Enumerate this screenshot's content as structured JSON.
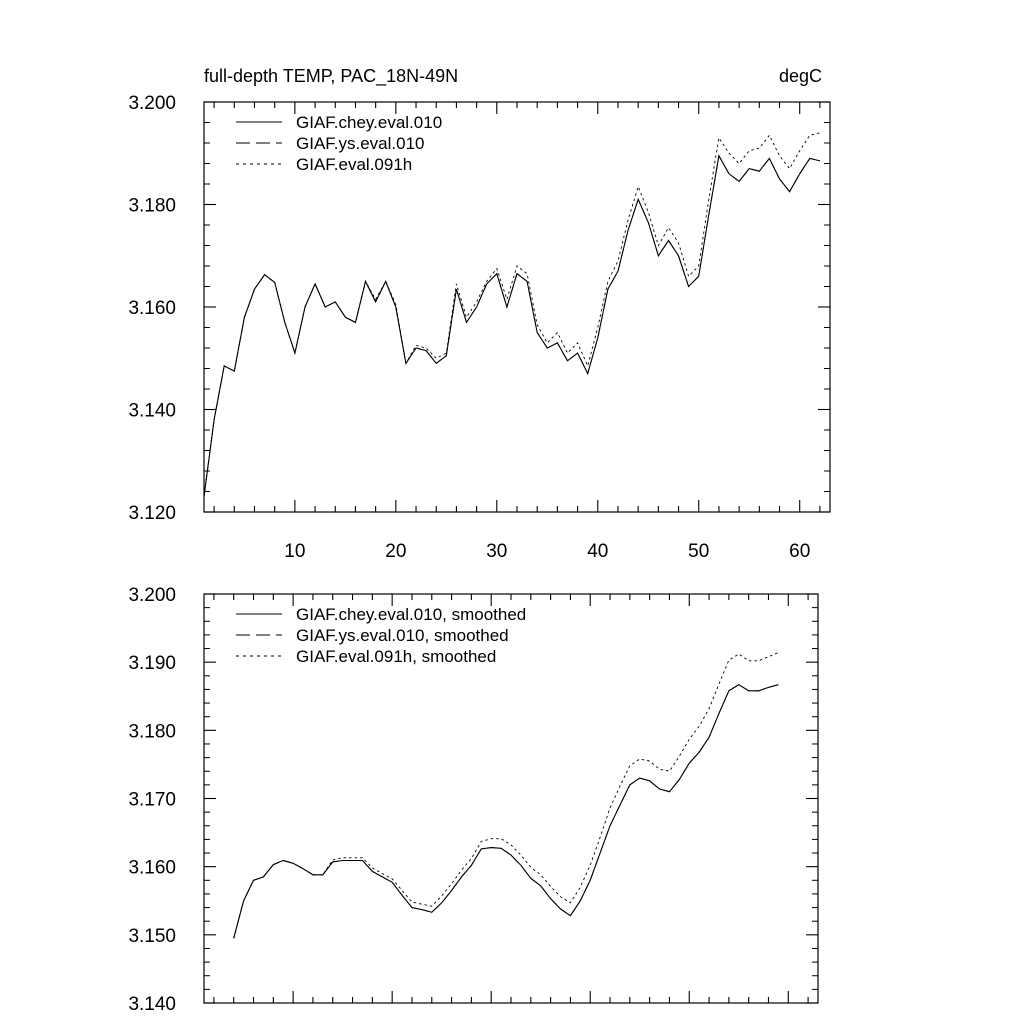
{
  "chart_data": [
    {
      "type": "line",
      "title": "full-depth TEMP, PAC_18N-49N",
      "units": "degC",
      "xlim": [
        1,
        63
      ],
      "ylim": [
        3.12,
        3.2
      ],
      "xticks": [
        10,
        20,
        30,
        40,
        50,
        60
      ],
      "xtick_labels": [
        "10",
        "20",
        "30",
        "40",
        "50",
        "60"
      ],
      "yticks": [
        3.12,
        3.14,
        3.16,
        3.18,
        3.2
      ],
      "ytick_labels": [
        "3.120",
        "3.140",
        "3.160",
        "3.180",
        "3.200"
      ],
      "legend_position": "top-left",
      "x": [
        1,
        2,
        3,
        4,
        5,
        6,
        7,
        8,
        9,
        10,
        11,
        12,
        13,
        14,
        15,
        16,
        17,
        18,
        19,
        20,
        21,
        22,
        23,
        24,
        25,
        26,
        27,
        28,
        29,
        30,
        31,
        32,
        33,
        34,
        35,
        36,
        37,
        38,
        39,
        40,
        41,
        42,
        43,
        44,
        45,
        46,
        47,
        48,
        49,
        50,
        51,
        52,
        53,
        54,
        55,
        56,
        57,
        58,
        59,
        60,
        61,
        62
      ],
      "series": [
        {
          "name": "GIAF.chey.eval.010",
          "style": "solid",
          "values": [
            3.123,
            3.138,
            3.1485,
            3.1475,
            3.158,
            3.1635,
            3.1663,
            3.1648,
            3.157,
            3.151,
            3.16,
            3.1645,
            3.16,
            3.161,
            3.158,
            3.157,
            3.165,
            3.161,
            3.165,
            3.16,
            3.149,
            3.152,
            3.1515,
            3.149,
            3.1505,
            3.1635,
            3.157,
            3.16,
            3.1645,
            3.1665,
            3.16,
            3.1665,
            3.165,
            3.155,
            3.152,
            3.153,
            3.1495,
            3.151,
            3.147,
            3.154,
            3.1635,
            3.167,
            3.175,
            3.181,
            3.1765,
            3.17,
            3.173,
            3.17,
            3.164,
            3.166,
            3.178,
            3.1895,
            3.186,
            3.1845,
            3.187,
            3.1865,
            3.189,
            3.185,
            3.1825,
            3.186,
            3.189,
            3.1885
          ]
        },
        {
          "name": "GIAF.ys.eval.010",
          "style": "dashed",
          "values": [
            3.123,
            3.138,
            3.1485,
            3.1475,
            3.158,
            3.1635,
            3.1663,
            3.1648,
            3.157,
            3.151,
            3.16,
            3.1645,
            3.16,
            3.161,
            3.158,
            3.157,
            3.165,
            3.161,
            3.165,
            3.16,
            3.149,
            3.152,
            3.1515,
            3.149,
            3.1505,
            3.1635,
            3.157,
            3.16,
            3.1645,
            3.1665,
            3.16,
            3.1665,
            3.165,
            3.155,
            3.152,
            3.153,
            3.1495,
            3.151,
            3.147,
            3.154,
            3.1635,
            3.167,
            3.175,
            3.181,
            3.1765,
            3.17,
            3.173,
            3.17,
            3.164,
            3.166,
            3.178,
            3.1895,
            3.186,
            3.1845,
            3.187,
            3.1865,
            3.189,
            3.185,
            3.1825,
            3.186,
            3.189,
            3.1885
          ]
        },
        {
          "name": "GIAF.eval.091h",
          "style": "dotted",
          "values": [
            3.123,
            3.138,
            3.1485,
            3.1475,
            3.158,
            3.1635,
            3.1663,
            3.1648,
            3.157,
            3.151,
            3.16,
            3.1645,
            3.16,
            3.161,
            3.158,
            3.157,
            3.165,
            3.1615,
            3.165,
            3.1605,
            3.149,
            3.1525,
            3.152,
            3.15,
            3.151,
            3.1645,
            3.158,
            3.161,
            3.165,
            3.1675,
            3.1615,
            3.168,
            3.1665,
            3.1565,
            3.153,
            3.155,
            3.151,
            3.153,
            3.1485,
            3.156,
            3.165,
            3.169,
            3.177,
            3.1835,
            3.1785,
            3.172,
            3.1755,
            3.1725,
            3.166,
            3.168,
            3.181,
            3.193,
            3.19,
            3.188,
            3.1905,
            3.191,
            3.1935,
            3.1895,
            3.187,
            3.1905,
            3.1935,
            3.194
          ]
        }
      ]
    },
    {
      "type": "line",
      "xlim": [
        1,
        63
      ],
      "ylim": [
        3.14,
        3.2
      ],
      "xticks": [
        10,
        20,
        30,
        40,
        50,
        60
      ],
      "yticks": [
        3.14,
        3.15,
        3.16,
        3.17,
        3.18,
        3.19,
        3.2
      ],
      "ytick_labels": [
        "3.140",
        "3.150",
        "3.160",
        "3.170",
        "3.180",
        "3.190",
        "3.200"
      ],
      "legend_position": "top-left",
      "x": [
        4,
        5,
        6,
        7,
        8,
        9,
        10,
        11,
        12,
        13,
        14,
        15,
        16,
        17,
        18,
        19,
        20,
        21,
        22,
        23,
        24,
        25,
        26,
        27,
        28,
        29,
        30,
        31,
        32,
        33,
        34,
        35,
        36,
        37,
        38,
        39,
        40,
        41,
        42,
        43,
        44,
        45,
        46,
        47,
        48,
        49,
        50,
        51,
        52,
        53,
        54,
        55,
        56,
        57,
        58,
        59
      ],
      "series": [
        {
          "name": "GIAF.chey.eval.010, smoothed",
          "style": "solid",
          "values": [
            3.1495,
            3.155,
            3.158,
            3.1585,
            3.1603,
            3.1609,
            3.1605,
            3.1597,
            3.1588,
            3.1588,
            3.1607,
            3.1609,
            3.1609,
            3.1609,
            3.1593,
            3.1585,
            3.1577,
            3.1558,
            3.154,
            3.1537,
            3.1533,
            3.1547,
            3.1565,
            3.1585,
            3.1602,
            3.1626,
            3.1628,
            3.1627,
            3.1617,
            3.1602,
            3.1583,
            3.1572,
            3.1553,
            3.1538,
            3.1528,
            3.155,
            3.158,
            3.162,
            3.166,
            3.169,
            3.172,
            3.173,
            3.1726,
            3.1714,
            3.171,
            3.1728,
            3.1752,
            3.1768,
            3.179,
            3.1825,
            3.1858,
            3.1867,
            3.1858,
            3.1858,
            3.1863,
            3.1867
          ]
        },
        {
          "name": "GIAF.ys.eval.010, smoothed",
          "style": "dashed",
          "values": [
            3.1495,
            3.155,
            3.158,
            3.1585,
            3.1603,
            3.1609,
            3.1605,
            3.1597,
            3.1588,
            3.1588,
            3.1607,
            3.1609,
            3.1609,
            3.1609,
            3.1593,
            3.1585,
            3.1577,
            3.1558,
            3.154,
            3.1537,
            3.1533,
            3.1547,
            3.1565,
            3.1585,
            3.1602,
            3.1626,
            3.1628,
            3.1627,
            3.1617,
            3.1602,
            3.1583,
            3.1572,
            3.1553,
            3.1538,
            3.1528,
            3.155,
            3.158,
            3.162,
            3.166,
            3.169,
            3.172,
            3.173,
            3.1726,
            3.1714,
            3.171,
            3.1728,
            3.1752,
            3.1768,
            3.179,
            3.1825,
            3.1858,
            3.1867,
            3.1858,
            3.1858,
            3.1863,
            3.1867
          ]
        },
        {
          "name": "GIAF.eval.091h, smoothed",
          "style": "dotted",
          "values": [
            3.1495,
            3.155,
            3.158,
            3.1585,
            3.1603,
            3.1609,
            3.1605,
            3.1597,
            3.1588,
            3.1588,
            3.161,
            3.1613,
            3.1613,
            3.1613,
            3.1598,
            3.159,
            3.1582,
            3.1565,
            3.1548,
            3.1545,
            3.1542,
            3.1557,
            3.1575,
            3.1595,
            3.1612,
            3.1637,
            3.1641,
            3.1641,
            3.1632,
            3.1617,
            3.1599,
            3.1588,
            3.1571,
            3.1556,
            3.1547,
            3.157,
            3.1602,
            3.1643,
            3.1686,
            3.1718,
            3.1748,
            3.1758,
            3.1755,
            3.1743,
            3.174,
            3.1762,
            3.1787,
            3.1806,
            3.1832,
            3.1868,
            3.1903,
            3.1912,
            3.1902,
            3.1902,
            3.1908,
            3.1914
          ]
        }
      ]
    }
  ]
}
